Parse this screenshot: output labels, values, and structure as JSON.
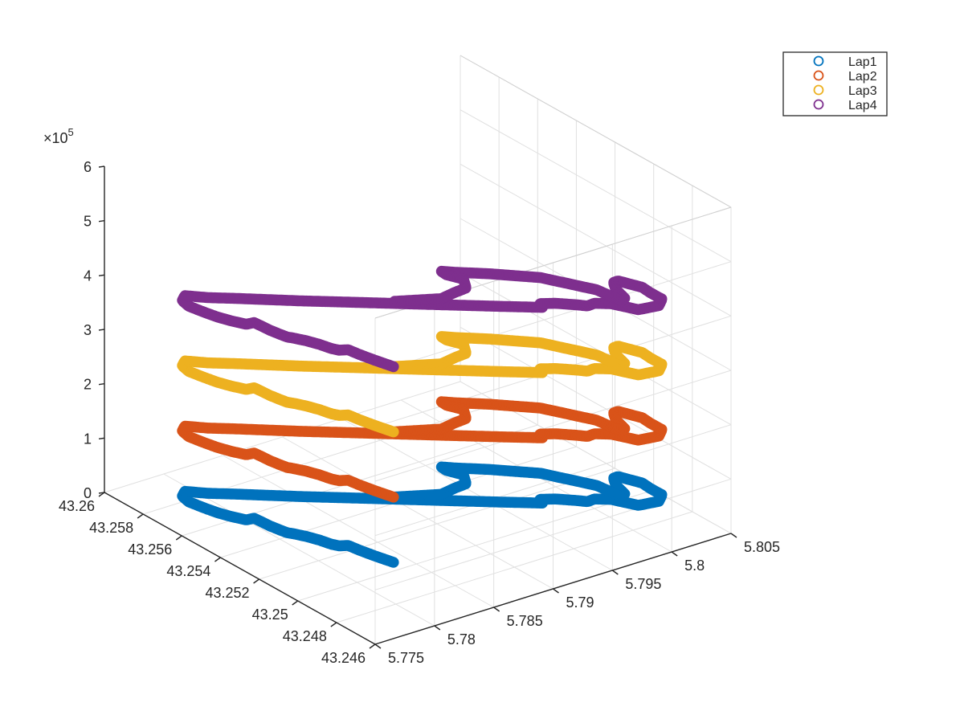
{
  "chart_data": {
    "type": "scatter",
    "projection": "3d",
    "title": "",
    "xlabel": "",
    "ylabel": "",
    "zlabel": "",
    "grid": true,
    "box": true,
    "xlim": [
      43.246,
      43.26
    ],
    "ylim": [
      5.775,
      5.805
    ],
    "zlim": [
      0,
      600000
    ],
    "z_exponent_label": "×10",
    "z_exponent": "5",
    "x_ticks": [
      43.246,
      43.248,
      43.25,
      43.252,
      43.254,
      43.256,
      43.258,
      43.26
    ],
    "x_tick_labels": [
      "43.246",
      "43.248",
      "43.25",
      "43.252",
      "43.254",
      "43.256",
      "43.258",
      "43.26"
    ],
    "y_ticks": [
      5.775,
      5.78,
      5.785,
      5.79,
      5.795,
      5.8,
      5.805
    ],
    "y_tick_labels": [
      "5.775",
      "5.78",
      "5.785",
      "5.79",
      "5.795",
      "5.8",
      "5.805"
    ],
    "z_ticks": [
      0,
      100000,
      200000,
      300000,
      400000,
      500000,
      600000
    ],
    "z_tick_labels": [
      "0",
      "1",
      "2",
      "3",
      "4",
      "5",
      "6"
    ],
    "legend_position": "top-right",
    "lap_height": 120000,
    "track": [
      [
        43.25052,
        5.78391
      ],
      [
        43.25121,
        5.78338
      ],
      [
        43.25179,
        5.78301
      ],
      [
        43.25219,
        5.78281
      ],
      [
        43.2523,
        5.78223
      ],
      [
        43.2525,
        5.78193
      ],
      [
        43.25294,
        5.7816
      ],
      [
        43.25334,
        5.78117
      ],
      [
        43.2537,
        5.78065
      ],
      [
        43.25385,
        5.78038
      ],
      [
        43.25412,
        5.78021
      ],
      [
        43.2545,
        5.78
      ],
      [
        43.2549,
        5.77988
      ],
      [
        43.25519,
        5.77978
      ],
      [
        43.25521,
        5.77914
      ],
      [
        43.25565,
        5.77855
      ],
      [
        43.25608,
        5.7781
      ],
      [
        43.25657,
        5.77776
      ],
      [
        43.25714,
        5.77743
      ],
      [
        43.25755,
        5.77757
      ],
      [
        43.25778,
        5.77815
      ],
      [
        43.25716,
        5.77907
      ],
      [
        43.25649,
        5.78036
      ],
      [
        43.25491,
        5.78327
      ],
      [
        43.25332,
        5.78635
      ],
      [
        43.25173,
        5.78942
      ],
      [
        43.25014,
        5.79249
      ],
      [
        43.24919,
        5.79436
      ],
      [
        43.24946,
        5.7945
      ],
      [
        43.24912,
        5.79532
      ],
      [
        43.24858,
        5.79617
      ],
      [
        43.24827,
        5.79659
      ],
      [
        43.24827,
        5.79718
      ],
      [
        43.24788,
        5.79796
      ],
      [
        43.24692,
        5.79869
      ],
      [
        43.24671,
        5.80008
      ],
      [
        43.24701,
        5.80083
      ],
      [
        43.24755,
        5.80074
      ],
      [
        43.248,
        5.80077
      ],
      [
        43.24874,
        5.79993
      ],
      [
        43.24871,
        5.79951
      ],
      [
        43.24824,
        5.79893
      ],
      [
        43.24747,
        5.79846
      ],
      [
        43.24738,
        5.798
      ],
      [
        43.2484,
        5.79759
      ],
      [
        43.24996,
        5.79539
      ],
      [
        43.25092,
        5.79278
      ],
      [
        43.25158,
        5.79069
      ],
      [
        43.25182,
        5.79004
      ],
      [
        43.25149,
        5.78996
      ],
      [
        43.25086,
        5.79036
      ],
      [
        43.25024,
        5.78958
      ],
      [
        43.25014,
        5.78843
      ],
      [
        43.24997,
        5.78704
      ],
      [
        43.25052,
        5.78391
      ]
    ],
    "series": [
      {
        "name": "Lap1",
        "color": "#0072BD",
        "z_offset": 0
      },
      {
        "name": "Lap2",
        "color": "#D95319",
        "z_offset": 120000
      },
      {
        "name": "Lap3",
        "color": "#EDB120",
        "z_offset": 240000
      },
      {
        "name": "Lap4",
        "color": "#7E2F8E",
        "z_offset": 360000
      }
    ]
  }
}
